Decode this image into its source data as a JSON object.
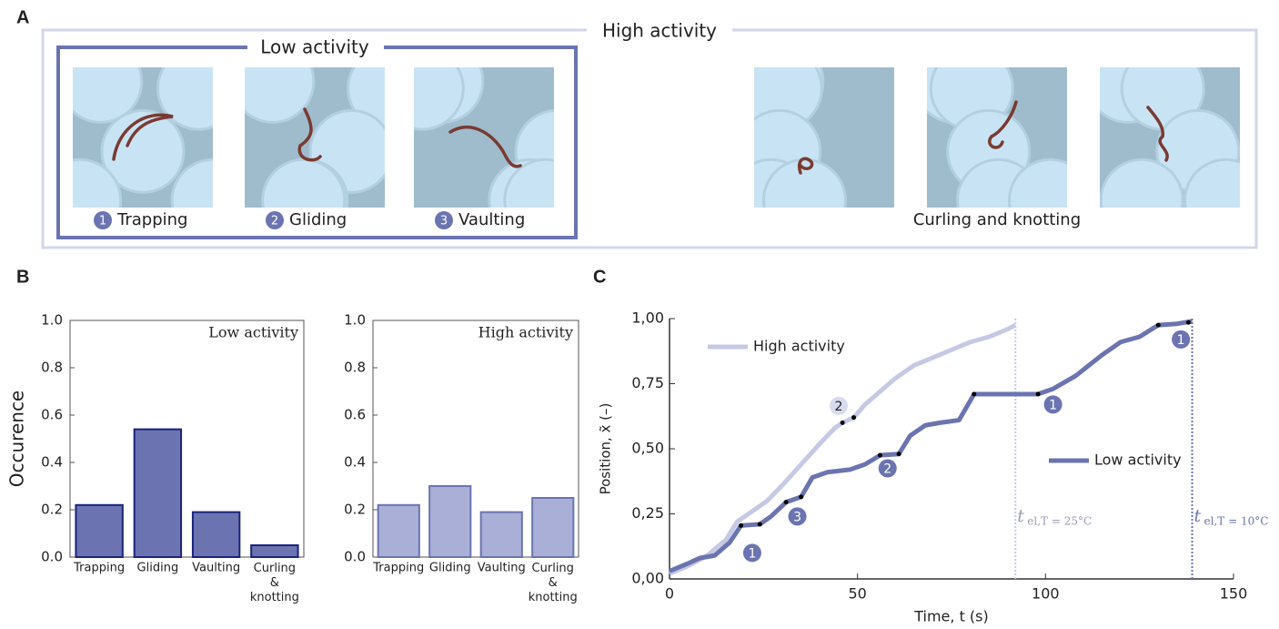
{
  "panel_labels": [
    "A",
    "B",
    "C"
  ],
  "panel_a": {
    "outer_label": "High activity",
    "inner_label": "Low activity",
    "behaviors": [
      {
        "number": "1",
        "name": "Trapping"
      },
      {
        "number": "2",
        "name": "Gliding"
      },
      {
        "number": "3",
        "name": "Vaulting"
      }
    ],
    "high_caption": "Curling and knotting"
  },
  "chart_data": [
    {
      "type": "bar",
      "title": "Low activity",
      "ylabel": "Occurence",
      "categories": [
        "Trapping",
        "Gliding",
        "Vaulting",
        "Curling & knotting"
      ],
      "values": [
        0.22,
        0.54,
        0.19,
        0.05
      ],
      "color": "#6b74b0",
      "edge_color": "#1a237e",
      "ylim": [
        0,
        1
      ],
      "yticks": [
        {
          "value": 0,
          "label": "0.0"
        },
        0.2,
        0.4,
        0.6,
        0.8,
        {
          "value": 1,
          "label": "1.0"
        }
      ]
    },
    {
      "type": "bar",
      "title": "High activity",
      "categories": [
        "Trapping",
        "Gliding",
        "Vaulting",
        "Curling & knotting"
      ],
      "values": [
        0.22,
        0.3,
        0.19,
        0.25
      ],
      "color": "#a9afd6",
      "edge_color": "#6b74b0",
      "ylim": [
        0,
        1
      ],
      "yticks": [
        {
          "value": 0,
          "label": "0.0"
        },
        0.2,
        0.4,
        0.6,
        0.8,
        {
          "value": 1,
          "label": "1.0"
        }
      ]
    },
    {
      "type": "line",
      "xlabel": "Time, t (s)",
      "ylabel": "Position, x̃ (–)",
      "xlim": [
        0,
        150
      ],
      "xticks": [
        0,
        50,
        100,
        150
      ],
      "ylim": [
        0,
        1
      ],
      "yticks": [
        {
          "value": 0,
          "label": "0,00"
        },
        {
          "value": 0.25,
          "label": "0,25"
        },
        {
          "value": 0.5,
          "label": "0,50"
        },
        {
          "value": 0.75,
          "label": "0,75"
        },
        {
          "value": 1,
          "label": "1,00"
        }
      ],
      "series": [
        {
          "name": "High activity",
          "color": "#c5c9e3",
          "x": [
            0,
            5,
            10,
            15,
            18,
            22,
            26,
            30,
            35,
            40,
            44,
            46,
            49,
            52,
            56,
            60,
            65,
            70,
            75,
            80,
            85,
            90,
            92
          ],
          "values": [
            0.02,
            0.05,
            0.09,
            0.15,
            0.22,
            0.26,
            0.3,
            0.36,
            0.44,
            0.52,
            0.58,
            0.6,
            0.62,
            0.67,
            0.72,
            0.77,
            0.82,
            0.85,
            0.88,
            0.91,
            0.93,
            0.96,
            0.975
          ],
          "event_x": [
            46,
            49
          ],
          "event_y": [
            0.6,
            0.62
          ]
        },
        {
          "name": "Low activity",
          "color": "#6b74b0",
          "x": [
            0,
            5,
            8,
            12,
            16,
            19,
            24,
            27,
            31,
            35,
            38,
            42,
            48,
            52,
            56,
            61,
            64,
            68,
            72,
            77,
            81,
            90,
            98,
            102,
            108,
            115,
            120,
            125,
            130,
            135,
            139
          ],
          "values": [
            0.03,
            0.06,
            0.08,
            0.09,
            0.14,
            0.205,
            0.21,
            0.24,
            0.295,
            0.315,
            0.39,
            0.41,
            0.42,
            0.44,
            0.475,
            0.48,
            0.55,
            0.59,
            0.6,
            0.61,
            0.71,
            0.71,
            0.71,
            0.73,
            0.78,
            0.86,
            0.91,
            0.93,
            0.975,
            0.98,
            0.99
          ],
          "event_x": [
            19,
            24,
            31,
            35,
            56,
            61,
            81,
            98,
            130,
            138
          ],
          "event_y": [
            0.205,
            0.21,
            0.295,
            0.315,
            0.475,
            0.48,
            0.71,
            0.71,
            0.975,
            0.985
          ]
        }
      ],
      "annotations": [
        {
          "text": "1",
          "x": 22,
          "y": 0.1,
          "series": 1
        },
        {
          "text": "3",
          "x": 34,
          "y": 0.24,
          "series": 1
        },
        {
          "text": "2",
          "x": 58,
          "y": 0.425,
          "series": 1
        },
        {
          "text": "1",
          "x": 102,
          "y": 0.67,
          "series": 1
        },
        {
          "text": "1",
          "x": 136,
          "y": 0.92,
          "series": 1
        },
        {
          "text": "2",
          "x": 45,
          "y": 0.665,
          "series": 0
        }
      ],
      "vlines": [
        {
          "x": 92,
          "label": "t",
          "subscript": "el,T = 25°C",
          "series": 0
        },
        {
          "x": 139,
          "label": "t",
          "subscript": "el,T = 10°C",
          "series": 1
        }
      ]
    }
  ]
}
